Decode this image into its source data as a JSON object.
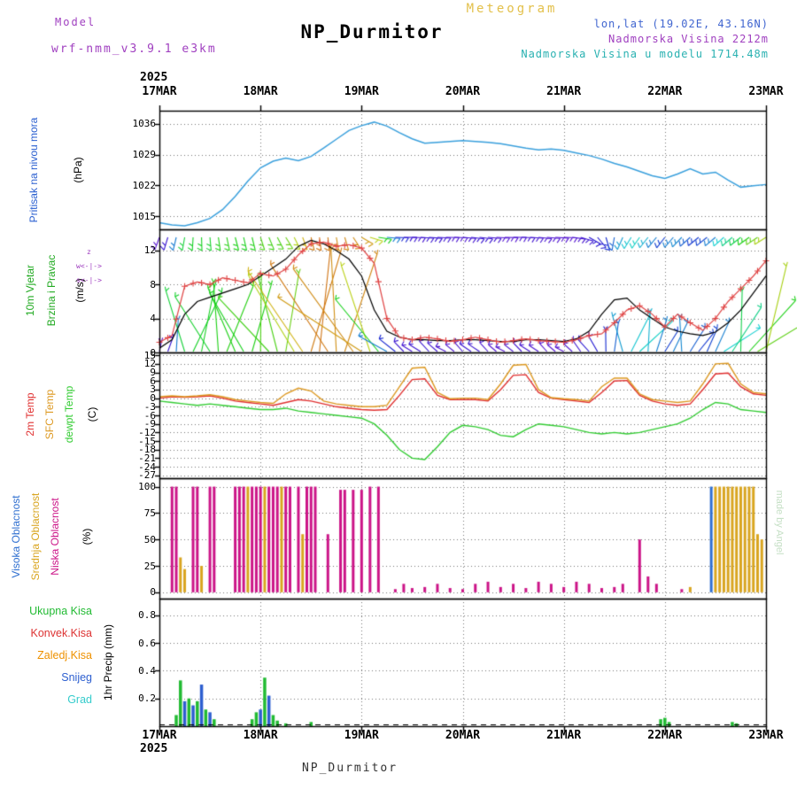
{
  "header": {
    "meteogram_label": "Meteogram",
    "model_label": "Model",
    "model_name": "wrf-nmm_v3.9.1 e3km",
    "station_title": "NP_Durmitor",
    "lonlat": "lon,lat (19.02E, 43.16N)",
    "elevation": "Nadmorska Visina 2212m",
    "model_elevation": "Nadmorska Visina u modelu 1714.48m",
    "colors": {
      "meteogram": "#e3c04a",
      "model": "#a040c0",
      "title": "#000000",
      "lonlat": "#4166d0",
      "elevation": "#a040c0",
      "model_elevation": "#29b1b1",
      "watermark": "#c4dfc4"
    }
  },
  "watermark": "made by Angel",
  "footer": {
    "station_title": "NP_Durmitor"
  },
  "x_axis": {
    "year": "2025",
    "days": [
      "17MAR",
      "18MAR",
      "19MAR",
      "20MAR",
      "21MAR",
      "22MAR",
      "23MAR"
    ],
    "hours_total": 144
  },
  "chart_data": [
    {
      "id": "sea-level-pressure",
      "type": "line",
      "label_main": "Pritisak na nivou mora",
      "label_unit": "(hPa)",
      "label_color": "#2a5fd0",
      "ylim": [
        1012,
        1039
      ],
      "yticks": [
        1015,
        1022,
        1029,
        1036
      ],
      "step_hours": 3,
      "series": [
        {
          "name": "mslp",
          "color": "#3aa0dd",
          "values": [
            1013.5,
            1013.0,
            1012.8,
            1013.5,
            1014.5,
            1016.5,
            1019.5,
            1023.0,
            1026.0,
            1027.5,
            1028.2,
            1027.6,
            1028.6,
            1030.5,
            1032.5,
            1034.5,
            1035.6,
            1036.4,
            1035.5,
            1034.0,
            1032.6,
            1031.6,
            1031.8,
            1032.0,
            1032.2,
            1032.0,
            1031.8,
            1031.5,
            1031.0,
            1030.5,
            1030.1,
            1030.3,
            1030.0,
            1029.4,
            1028.8,
            1028.0,
            1027.0,
            1026.2,
            1025.2,
            1024.2,
            1023.6,
            1024.6,
            1025.8,
            1024.6,
            1025.0,
            1023.2,
            1021.6,
            1021.9,
            1022.2
          ]
        }
      ]
    },
    {
      "id": "wind-10m",
      "type": "wind",
      "label_line1": "10m Vjetar",
      "label_line2": "Brzina i Pravac",
      "label_unit": "(m/s)",
      "label_color": "#22aa22",
      "compass": [
        "z",
        "w<-|->",
        "s<-|->"
      ],
      "compass_color": "#a040c0",
      "ylim": [
        0,
        14.5
      ],
      "yticks": [
        0,
        4,
        8,
        12
      ],
      "step_hours": 3,
      "series": [
        {
          "name": "wind-speed-plus",
          "color": "#e04545",
          "marker": "+",
          "values": [
            1.2,
            2.0,
            7.8,
            8.3,
            8.0,
            8.8,
            8.5,
            8.2,
            9.3,
            9.0,
            9.8,
            11.5,
            12.8,
            13.0,
            12.5,
            12.7,
            12.3,
            10.5,
            4.0,
            1.8,
            1.5,
            1.8,
            1.6,
            1.3,
            1.5,
            1.8,
            1.5,
            1.2,
            1.4,
            1.6,
            1.4,
            1.3,
            1.2,
            1.5,
            2.0,
            2.2,
            3.5,
            5.0,
            5.5,
            4.5,
            3.0,
            4.5,
            3.5,
            2.6,
            4.0,
            6.0,
            7.5,
            9.0,
            10.8
          ]
        },
        {
          "name": "wind-speed-line",
          "color": "#000000",
          "values": [
            0.5,
            1.5,
            4.5,
            6.0,
            6.5,
            7.0,
            7.5,
            8.0,
            9.0,
            10.0,
            11.0,
            12.5,
            13.2,
            12.8,
            12.0,
            11.0,
            9.0,
            5.0,
            2.5,
            1.8,
            1.5,
            1.5,
            1.4,
            1.4,
            1.5,
            1.5,
            1.4,
            1.3,
            1.3,
            1.5,
            1.5,
            1.4,
            1.3,
            1.6,
            2.5,
            4.5,
            6.2,
            6.4,
            5.0,
            4.0,
            3.0,
            2.5,
            2.2,
            2.0,
            2.4,
            3.5,
            5.0,
            7.0,
            9.0
          ]
        }
      ],
      "direction_deg": [
        200,
        195,
        190,
        180,
        175,
        170,
        165,
        168,
        162,
        155,
        148,
        156,
        166,
        176,
        170,
        160,
        120,
        100,
        95,
        90,
        92,
        95,
        93,
        90,
        95,
        98,
        95,
        92,
        90,
        93,
        96,
        94,
        92,
        100,
        120,
        150,
        190,
        210,
        215,
        220,
        218,
        222,
        228,
        232,
        230,
        228,
        232,
        235,
        238
      ]
    },
    {
      "id": "temperature",
      "type": "line",
      "label_unit": "(C)",
      "ylim": [
        -28,
        16
      ],
      "yticks": [
        15,
        12,
        9,
        6,
        3,
        0,
        -3,
        -6,
        -9,
        -12,
        -15,
        -18,
        -21,
        -24,
        -27
      ],
      "step_hours": 3,
      "series": [
        {
          "name": "2m Temp",
          "color": "#e03030",
          "values": [
            0.0,
            0.5,
            0.3,
            0.5,
            0.8,
            0.0,
            -1.0,
            -1.5,
            -2.0,
            -2.5,
            -1.5,
            -0.5,
            -1.0,
            -2.0,
            -3.0,
            -3.5,
            -4.0,
            -4.2,
            -4.0,
            1.0,
            6.5,
            6.8,
            1.0,
            -0.5,
            -0.5,
            -0.5,
            -1.0,
            3.0,
            8.0,
            8.2,
            2.0,
            0.0,
            -0.5,
            -1.0,
            -1.5,
            2.0,
            6.0,
            6.2,
            1.0,
            -1.0,
            -2.0,
            -2.5,
            -2.0,
            3.0,
            8.5,
            8.8,
            4.0,
            1.5,
            1.0
          ]
        },
        {
          "name": "SFC Temp",
          "color": "#dd9922",
          "values": [
            0.5,
            0.8,
            0.5,
            0.8,
            1.2,
            0.5,
            -0.5,
            -1.0,
            -1.5,
            -1.8,
            1.5,
            3.5,
            2.5,
            -1.0,
            -2.0,
            -2.5,
            -3.0,
            -3.0,
            -2.5,
            4.0,
            10.5,
            10.8,
            2.0,
            -0.2,
            0.0,
            0.0,
            -0.5,
            5.0,
            11.5,
            11.8,
            3.0,
            0.2,
            -0.2,
            -0.5,
            -1.0,
            4.0,
            7.0,
            7.0,
            1.5,
            -0.5,
            -1.0,
            -1.5,
            -1.0,
            5.0,
            12.0,
            12.2,
            5.0,
            2.0,
            1.5
          ]
        },
        {
          "name": "dewpt Temp",
          "color": "#33cc33",
          "values": [
            -1.0,
            -1.5,
            -2.0,
            -2.5,
            -2.0,
            -2.5,
            -3.0,
            -3.5,
            -4.0,
            -4.0,
            -3.5,
            -4.5,
            -5.0,
            -5.5,
            -6.0,
            -6.5,
            -7.0,
            -9.0,
            -13.0,
            -18.0,
            -21.0,
            -21.5,
            -17.0,
            -12.0,
            -9.5,
            -10.0,
            -11.0,
            -13.0,
            -13.5,
            -11.0,
            -9.0,
            -9.5,
            -10.0,
            -11.0,
            -12.0,
            -12.5,
            -12.0,
            -12.5,
            -12.0,
            -11.0,
            -10.0,
            -9.0,
            -7.0,
            -4.0,
            -1.5,
            -2.0,
            -4.0,
            -4.5,
            -5.0
          ]
        }
      ]
    },
    {
      "id": "cloud-cover",
      "type": "bars",
      "label_unit": "(%)",
      "ylim": [
        -6,
        108
      ],
      "yticks": [
        0,
        25,
        50,
        75,
        100
      ],
      "legend": [
        {
          "key": "high",
          "label": "Visoka Oblacnost",
          "color": "#2f6fd0"
        },
        {
          "key": "mid",
          "label": "Srednja Oblacnost",
          "color": "#d9a520"
        },
        {
          "key": "low",
          "label": "Niska Oblacnost",
          "color": "#cc1588"
        }
      ],
      "bars": [
        [
          3,
          100,
          "low"
        ],
        [
          4,
          100,
          "low"
        ],
        [
          5,
          33,
          "mid"
        ],
        [
          6,
          22,
          "mid"
        ],
        [
          8,
          100,
          "low"
        ],
        [
          9,
          100,
          "low"
        ],
        [
          10,
          25,
          "mid"
        ],
        [
          12,
          100,
          "low"
        ],
        [
          13,
          100,
          "low"
        ],
        [
          18,
          100,
          "low"
        ],
        [
          19,
          100,
          "low"
        ],
        [
          20,
          100,
          "low"
        ],
        [
          21,
          100,
          "mid"
        ],
        [
          22,
          100,
          "low"
        ],
        [
          23,
          100,
          "low"
        ],
        [
          24,
          100,
          "low"
        ],
        [
          25,
          100,
          "mid"
        ],
        [
          26,
          100,
          "low"
        ],
        [
          27,
          100,
          "low"
        ],
        [
          28,
          100,
          "low"
        ],
        [
          29,
          100,
          "mid"
        ],
        [
          30,
          100,
          "low"
        ],
        [
          31,
          100,
          "low"
        ],
        [
          33,
          100,
          "low"
        ],
        [
          34,
          55,
          "mid"
        ],
        [
          35,
          100,
          "low"
        ],
        [
          36,
          100,
          "low"
        ],
        [
          37,
          100,
          "low"
        ],
        [
          40,
          55,
          "low"
        ],
        [
          43,
          97,
          "low"
        ],
        [
          44,
          97,
          "low"
        ],
        [
          46,
          97,
          "low"
        ],
        [
          48,
          97,
          "low"
        ],
        [
          50,
          100,
          "low"
        ],
        [
          52,
          100,
          "low"
        ],
        [
          56,
          3,
          "low"
        ],
        [
          58,
          8,
          "low"
        ],
        [
          60,
          4,
          "low"
        ],
        [
          63,
          5,
          "low"
        ],
        [
          66,
          8,
          "low"
        ],
        [
          69,
          4,
          "low"
        ],
        [
          72,
          3,
          "low"
        ],
        [
          75,
          8,
          "low"
        ],
        [
          78,
          10,
          "low"
        ],
        [
          81,
          5,
          "low"
        ],
        [
          84,
          8,
          "low"
        ],
        [
          87,
          4,
          "low"
        ],
        [
          90,
          10,
          "low"
        ],
        [
          93,
          8,
          "low"
        ],
        [
          96,
          5,
          "low"
        ],
        [
          99,
          10,
          "low"
        ],
        [
          102,
          8,
          "low"
        ],
        [
          105,
          4,
          "low"
        ],
        [
          108,
          5,
          "low"
        ],
        [
          110,
          8,
          "low"
        ],
        [
          114,
          50,
          "low"
        ],
        [
          116,
          15,
          "low"
        ],
        [
          118,
          8,
          "low"
        ],
        [
          124,
          3,
          "low"
        ],
        [
          126,
          5,
          "mid"
        ],
        [
          131,
          100,
          "high"
        ],
        [
          132,
          100,
          "mid"
        ],
        [
          133,
          100,
          "mid"
        ],
        [
          134,
          100,
          "mid"
        ],
        [
          135,
          100,
          "mid"
        ],
        [
          136,
          100,
          "mid"
        ],
        [
          137,
          100,
          "mid"
        ],
        [
          138,
          100,
          "mid"
        ],
        [
          139,
          100,
          "mid"
        ],
        [
          140,
          100,
          "mid"
        ],
        [
          141,
          100,
          "mid"
        ],
        [
          142,
          55,
          "mid"
        ],
        [
          143,
          50,
          "mid"
        ]
      ]
    },
    {
      "id": "precipitation",
      "type": "bars",
      "label_unit": "1hr Precip (mm)",
      "ylim": [
        0,
        0.92
      ],
      "yticks": [
        0.2,
        0.4,
        0.6,
        0.8
      ],
      "zero_line_dashed": true,
      "legend": [
        {
          "key": "total",
          "label": "Ukupna Kisa",
          "color": "#22bb33"
        },
        {
          "key": "conv",
          "label": "Konvek.Kisa",
          "color": "#dd3333"
        },
        {
          "key": "freez",
          "label": "Zaledj.Kisa",
          "color": "#ee9100"
        },
        {
          "key": "snow",
          "label": "Snijeg",
          "color": "#2d5fd0"
        },
        {
          "key": "hail",
          "label": "Grad",
          "color": "#35cccc"
        }
      ],
      "bars": [
        [
          4,
          0.08,
          "total"
        ],
        [
          5,
          0.33,
          "total"
        ],
        [
          6,
          0.18,
          "snow"
        ],
        [
          7,
          0.2,
          "total"
        ],
        [
          8,
          0.15,
          "snow"
        ],
        [
          9,
          0.18,
          "total"
        ],
        [
          10,
          0.3,
          "snow"
        ],
        [
          11,
          0.12,
          "total"
        ],
        [
          12,
          0.1,
          "snow"
        ],
        [
          13,
          0.05,
          "total"
        ],
        [
          22,
          0.05,
          "total"
        ],
        [
          23,
          0.1,
          "total"
        ],
        [
          24,
          0.12,
          "snow"
        ],
        [
          25,
          0.35,
          "total"
        ],
        [
          26,
          0.22,
          "snow"
        ],
        [
          27,
          0.08,
          "total"
        ],
        [
          28,
          0.04,
          "total"
        ],
        [
          30,
          0.02,
          "total"
        ],
        [
          36,
          0.03,
          "total"
        ],
        [
          119,
          0.05,
          "total"
        ],
        [
          120,
          0.06,
          "total"
        ],
        [
          121,
          0.03,
          "total"
        ],
        [
          136,
          0.03,
          "total"
        ],
        [
          137,
          0.02,
          "total"
        ]
      ]
    }
  ]
}
